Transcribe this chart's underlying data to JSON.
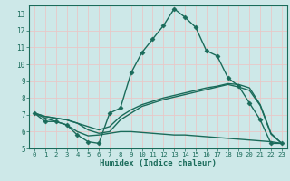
{
  "xlabel": "Humidex (Indice chaleur)",
  "xlim": [
    -0.5,
    23.5
  ],
  "ylim": [
    5,
    13.5
  ],
  "yticks": [
    5,
    6,
    7,
    8,
    9,
    10,
    11,
    12,
    13
  ],
  "xticks": [
    0,
    1,
    2,
    3,
    4,
    5,
    6,
    7,
    8,
    9,
    10,
    11,
    12,
    13,
    14,
    15,
    16,
    17,
    18,
    19,
    20,
    21,
    22,
    23
  ],
  "bg_color": "#cde8e8",
  "grid_color": "#e8c8c8",
  "line_color": "#1a6b5a",
  "lines": [
    {
      "x": [
        0,
        1,
        2,
        3,
        4,
        5,
        6,
        7,
        8,
        9,
        10,
        11,
        12,
        13,
        14,
        15,
        16,
        17,
        18,
        19,
        20,
        21,
        22,
        23
      ],
      "y": [
        7.1,
        6.6,
        6.6,
        6.4,
        5.8,
        5.4,
        5.3,
        7.1,
        7.4,
        9.5,
        10.7,
        11.5,
        12.3,
        13.3,
        12.8,
        12.2,
        10.8,
        10.5,
        9.2,
        8.7,
        7.7,
        6.7,
        5.3,
        5.3
      ],
      "marker": "D",
      "markersize": 2.5,
      "linewidth": 1.0
    },
    {
      "x": [
        0,
        1,
        2,
        3,
        4,
        5,
        6,
        7,
        8,
        9,
        10,
        11,
        12,
        13,
        14,
        15,
        16,
        17,
        18,
        19,
        20,
        21,
        22,
        23
      ],
      "y": [
        7.1,
        6.9,
        6.8,
        6.7,
        6.5,
        6.3,
        6.1,
        6.3,
        6.9,
        7.3,
        7.6,
        7.8,
        8.0,
        8.15,
        8.3,
        8.45,
        8.6,
        8.7,
        8.85,
        8.8,
        8.6,
        7.6,
        5.9,
        5.3
      ],
      "marker": null,
      "markersize": 0,
      "linewidth": 1.0
    },
    {
      "x": [
        0,
        1,
        2,
        3,
        4,
        5,
        6,
        7,
        8,
        9,
        10,
        11,
        12,
        13,
        14,
        15,
        16,
        17,
        18,
        19,
        20,
        21,
        22,
        23
      ],
      "y": [
        7.1,
        6.9,
        6.8,
        6.7,
        6.5,
        6.1,
        5.9,
        6.0,
        6.7,
        7.1,
        7.5,
        7.7,
        7.9,
        8.05,
        8.2,
        8.35,
        8.5,
        8.65,
        8.8,
        8.65,
        8.45,
        7.55,
        5.85,
        5.3
      ],
      "marker": null,
      "markersize": 0,
      "linewidth": 1.0
    },
    {
      "x": [
        0,
        1,
        2,
        3,
        4,
        5,
        6,
        7,
        8,
        9,
        10,
        11,
        12,
        13,
        14,
        15,
        16,
        17,
        18,
        19,
        20,
        21,
        22,
        23
      ],
      "y": [
        7.1,
        6.8,
        6.6,
        6.4,
        6.0,
        5.75,
        5.8,
        5.9,
        6.0,
        6.0,
        5.95,
        5.9,
        5.85,
        5.8,
        5.8,
        5.75,
        5.7,
        5.65,
        5.6,
        5.55,
        5.5,
        5.45,
        5.4,
        5.3
      ],
      "marker": null,
      "markersize": 0,
      "linewidth": 1.0
    }
  ]
}
